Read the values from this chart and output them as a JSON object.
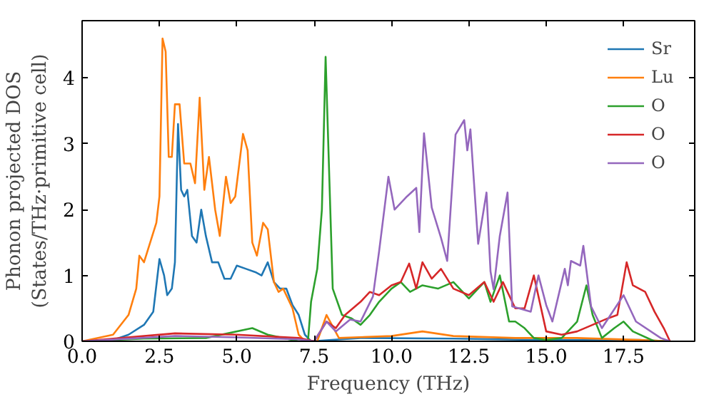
{
  "chart_data": {
    "type": "line",
    "xlabel": "Frequency (THz)",
    "ylabel": "Phonon projected DOS\n(States/THz·primitive cell)",
    "xlim": [
      0,
      19.8
    ],
    "ylim": [
      0,
      4.87
    ],
    "xticks": [
      {
        "value": 0,
        "label": "0.0"
      },
      {
        "value": 2.5,
        "label": "2.5"
      },
      {
        "value": 5,
        "label": "5.0"
      },
      {
        "value": 7.5,
        "label": "7.5"
      },
      {
        "value": 10,
        "label": "10.0"
      },
      {
        "value": 12.5,
        "label": "12.5"
      },
      {
        "value": 15,
        "label": "15.0"
      },
      {
        "value": 17.5,
        "label": "17.5"
      }
    ],
    "yticks": [
      0,
      1,
      2,
      3,
      4
    ],
    "grid": false,
    "legend": "top right",
    "marker": "none",
    "line_style": "solid",
    "series": [
      {
        "name": "Sr",
        "color": "#1f77b4",
        "x": [
          0,
          1,
          1.5,
          2,
          2.3,
          2.5,
          2.65,
          2.75,
          2.9,
          3.0,
          3.1,
          3.2,
          3.3,
          3.4,
          3.55,
          3.7,
          3.85,
          4.0,
          4.2,
          4.4,
          4.6,
          4.8,
          5.0,
          5.3,
          5.6,
          5.8,
          6.0,
          6.2,
          6.4,
          6.6,
          6.8,
          7.0,
          7.2,
          7.4,
          9,
          12,
          15,
          18,
          19
        ],
        "values": [
          0,
          0.02,
          0.1,
          0.25,
          0.45,
          1.25,
          1.0,
          0.7,
          0.8,
          1.2,
          3.3,
          2.3,
          2.2,
          2.3,
          1.6,
          1.5,
          2.0,
          1.6,
          1.2,
          1.2,
          0.95,
          0.95,
          1.15,
          1.1,
          1.05,
          1.0,
          1.2,
          0.9,
          0.8,
          0.8,
          0.55,
          0.4,
          0.1,
          0.0,
          0.05,
          0.04,
          0.02,
          0.02,
          0
        ]
      },
      {
        "name": "Lu",
        "color": "#ff7f0e",
        "x": [
          0,
          1,
          1.5,
          1.75,
          1.85,
          2.0,
          2.2,
          2.4,
          2.5,
          2.6,
          2.7,
          2.8,
          2.9,
          3.0,
          3.15,
          3.3,
          3.5,
          3.65,
          3.8,
          3.95,
          4.1,
          4.3,
          4.45,
          4.65,
          4.8,
          4.95,
          5.2,
          5.35,
          5.5,
          5.65,
          5.85,
          6.0,
          6.2,
          6.35,
          6.5,
          6.8,
          7.0,
          7.2,
          7.6,
          7.9,
          8.3,
          10,
          11,
          12,
          14,
          16,
          18,
          19
        ],
        "values": [
          0,
          0.1,
          0.4,
          0.8,
          1.3,
          1.2,
          1.5,
          1.8,
          2.2,
          4.6,
          4.4,
          2.8,
          2.8,
          3.6,
          3.6,
          2.7,
          2.7,
          2.4,
          3.7,
          2.3,
          2.8,
          2.0,
          1.6,
          2.5,
          2.1,
          2.2,
          3.15,
          2.9,
          1.5,
          1.3,
          1.8,
          1.7,
          0.9,
          0.75,
          0.8,
          0.5,
          0.1,
          0.0,
          0.0,
          0.4,
          0.05,
          0.08,
          0.15,
          0.08,
          0.05,
          0.05,
          0.02,
          0
        ]
      },
      {
        "name": "O",
        "color": "#2ca02c",
        "x": [
          0,
          2,
          4,
          5.5,
          6.0,
          7.0,
          7.3,
          7.4,
          7.6,
          7.75,
          7.87,
          8.1,
          8.4,
          8.7,
          9.0,
          9.3,
          9.6,
          10.0,
          10.3,
          10.6,
          11.0,
          11.5,
          12.0,
          12.5,
          13.0,
          13.2,
          13.5,
          13.8,
          14.0,
          14.3,
          14.6,
          15,
          15.5,
          16.0,
          16.3,
          16.5,
          16.8,
          17.2,
          17.5,
          17.8,
          18.5,
          19
        ],
        "values": [
          0,
          0.04,
          0.05,
          0.2,
          0.1,
          0.0,
          0.0,
          0.6,
          1.1,
          2.0,
          4.32,
          0.8,
          0.4,
          0.35,
          0.25,
          0.4,
          0.6,
          0.8,
          0.9,
          0.75,
          0.85,
          0.8,
          0.9,
          0.65,
          0.9,
          0.6,
          1.0,
          0.3,
          0.3,
          0.2,
          0.05,
          0.02,
          0.05,
          0.3,
          0.85,
          0.4,
          0.05,
          0.2,
          0.3,
          0.15,
          0.0,
          0
        ]
      },
      {
        "name": "O",
        "color": "#d62728",
        "x": [
          0,
          3,
          5,
          7,
          7.5,
          7.9,
          8.2,
          8.5,
          9.0,
          9.3,
          9.6,
          10.0,
          10.3,
          10.57,
          10.8,
          11.0,
          11.3,
          11.6,
          12.0,
          12.5,
          13.0,
          13.3,
          13.6,
          14.0,
          14.3,
          14.6,
          15.0,
          15.5,
          16.0,
          16.5,
          17.0,
          17.3,
          17.6,
          17.8,
          18.2,
          18.5,
          18.8,
          19.0
        ],
        "values": [
          0,
          0.12,
          0.1,
          0.05,
          0.0,
          0.3,
          0.2,
          0.4,
          0.6,
          0.75,
          0.7,
          0.85,
          0.9,
          1.18,
          0.8,
          1.2,
          0.95,
          1.1,
          0.8,
          0.7,
          0.9,
          0.6,
          0.9,
          0.5,
          0.5,
          1.0,
          0.15,
          0.1,
          0.15,
          0.25,
          0.35,
          0.4,
          1.2,
          0.85,
          0.75,
          0.45,
          0.2,
          0.0
        ]
      },
      {
        "name": "O",
        "color": "#9467bd",
        "x": [
          0,
          3,
          5,
          7,
          7.5,
          7.9,
          8.2,
          8.66,
          9.0,
          9.4,
          9.6,
          9.9,
          10.1,
          10.5,
          10.8,
          10.9,
          11.05,
          11.3,
          11.6,
          11.8,
          12.07,
          12.35,
          12.45,
          12.55,
          12.8,
          13.07,
          13.2,
          13.3,
          13.5,
          13.75,
          13.9,
          14.5,
          14.75,
          15.0,
          15.2,
          15.6,
          15.7,
          15.8,
          16.1,
          16.2,
          16.45,
          16.8,
          17.5,
          17.9,
          18.7,
          19
        ],
        "values": [
          0,
          0.08,
          0.06,
          0.03,
          0.0,
          0.3,
          0.15,
          0.33,
          0.3,
          0.68,
          1.37,
          2.5,
          2.0,
          2.2,
          2.33,
          1.66,
          3.16,
          2.03,
          1.57,
          1.22,
          3.14,
          3.36,
          2.9,
          3.22,
          1.48,
          2.26,
          1.06,
          0.79,
          1.6,
          2.26,
          0.53,
          0.45,
          1.0,
          0.55,
          0.3,
          1.1,
          0.85,
          1.22,
          1.15,
          1.45,
          0.53,
          0.2,
          0.7,
          0.3,
          0.05,
          0
        ]
      }
    ]
  }
}
